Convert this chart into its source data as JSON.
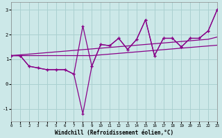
{
  "xlabel": "Windchill (Refroidissement éolien,°C)",
  "bg_color": "#cce8e8",
  "line_color": "#880088",
  "grid_color": "#aad0d0",
  "xlim": [
    0,
    23
  ],
  "ylim": [
    -1.5,
    3.3
  ],
  "yticks": [
    -1,
    0,
    1,
    2,
    3
  ],
  "xticks": [
    0,
    1,
    2,
    3,
    4,
    5,
    6,
    7,
    8,
    9,
    10,
    11,
    12,
    13,
    14,
    15,
    16,
    17,
    18,
    19,
    20,
    21,
    22,
    23
  ],
  "series_down": [
    1.15,
    1.15,
    0.72,
    0.65,
    0.58,
    0.58,
    0.58,
    0.4,
    -1.2,
    0.72,
    1.6,
    1.55,
    1.85,
    1.4,
    1.8,
    2.6,
    1.15,
    1.85,
    1.85,
    1.5,
    1.85,
    1.85,
    2.15,
    3.0
  ],
  "series_up": [
    1.15,
    1.15,
    0.72,
    0.65,
    0.58,
    0.58,
    0.58,
    0.4,
    2.35,
    0.72,
    1.6,
    1.55,
    1.85,
    1.4,
    1.8,
    2.6,
    1.15,
    1.85,
    1.85,
    1.5,
    1.85,
    1.85,
    2.15,
    3.0
  ],
  "trend1": [
    1.15,
    1.18,
    1.21,
    1.24,
    1.27,
    1.3,
    1.33,
    1.36,
    1.39,
    1.42,
    1.45,
    1.48,
    1.51,
    1.54,
    1.57,
    1.6,
    1.63,
    1.66,
    1.69,
    1.72,
    1.75,
    1.78,
    1.81,
    1.9
  ],
  "trend2": [
    1.15,
    1.15,
    1.15,
    1.15,
    1.15,
    1.15,
    1.15,
    1.15,
    1.15,
    1.15,
    1.18,
    1.21,
    1.24,
    1.27,
    1.3,
    1.33,
    1.36,
    1.39,
    1.42,
    1.45,
    1.48,
    1.51,
    1.54,
    1.57
  ]
}
